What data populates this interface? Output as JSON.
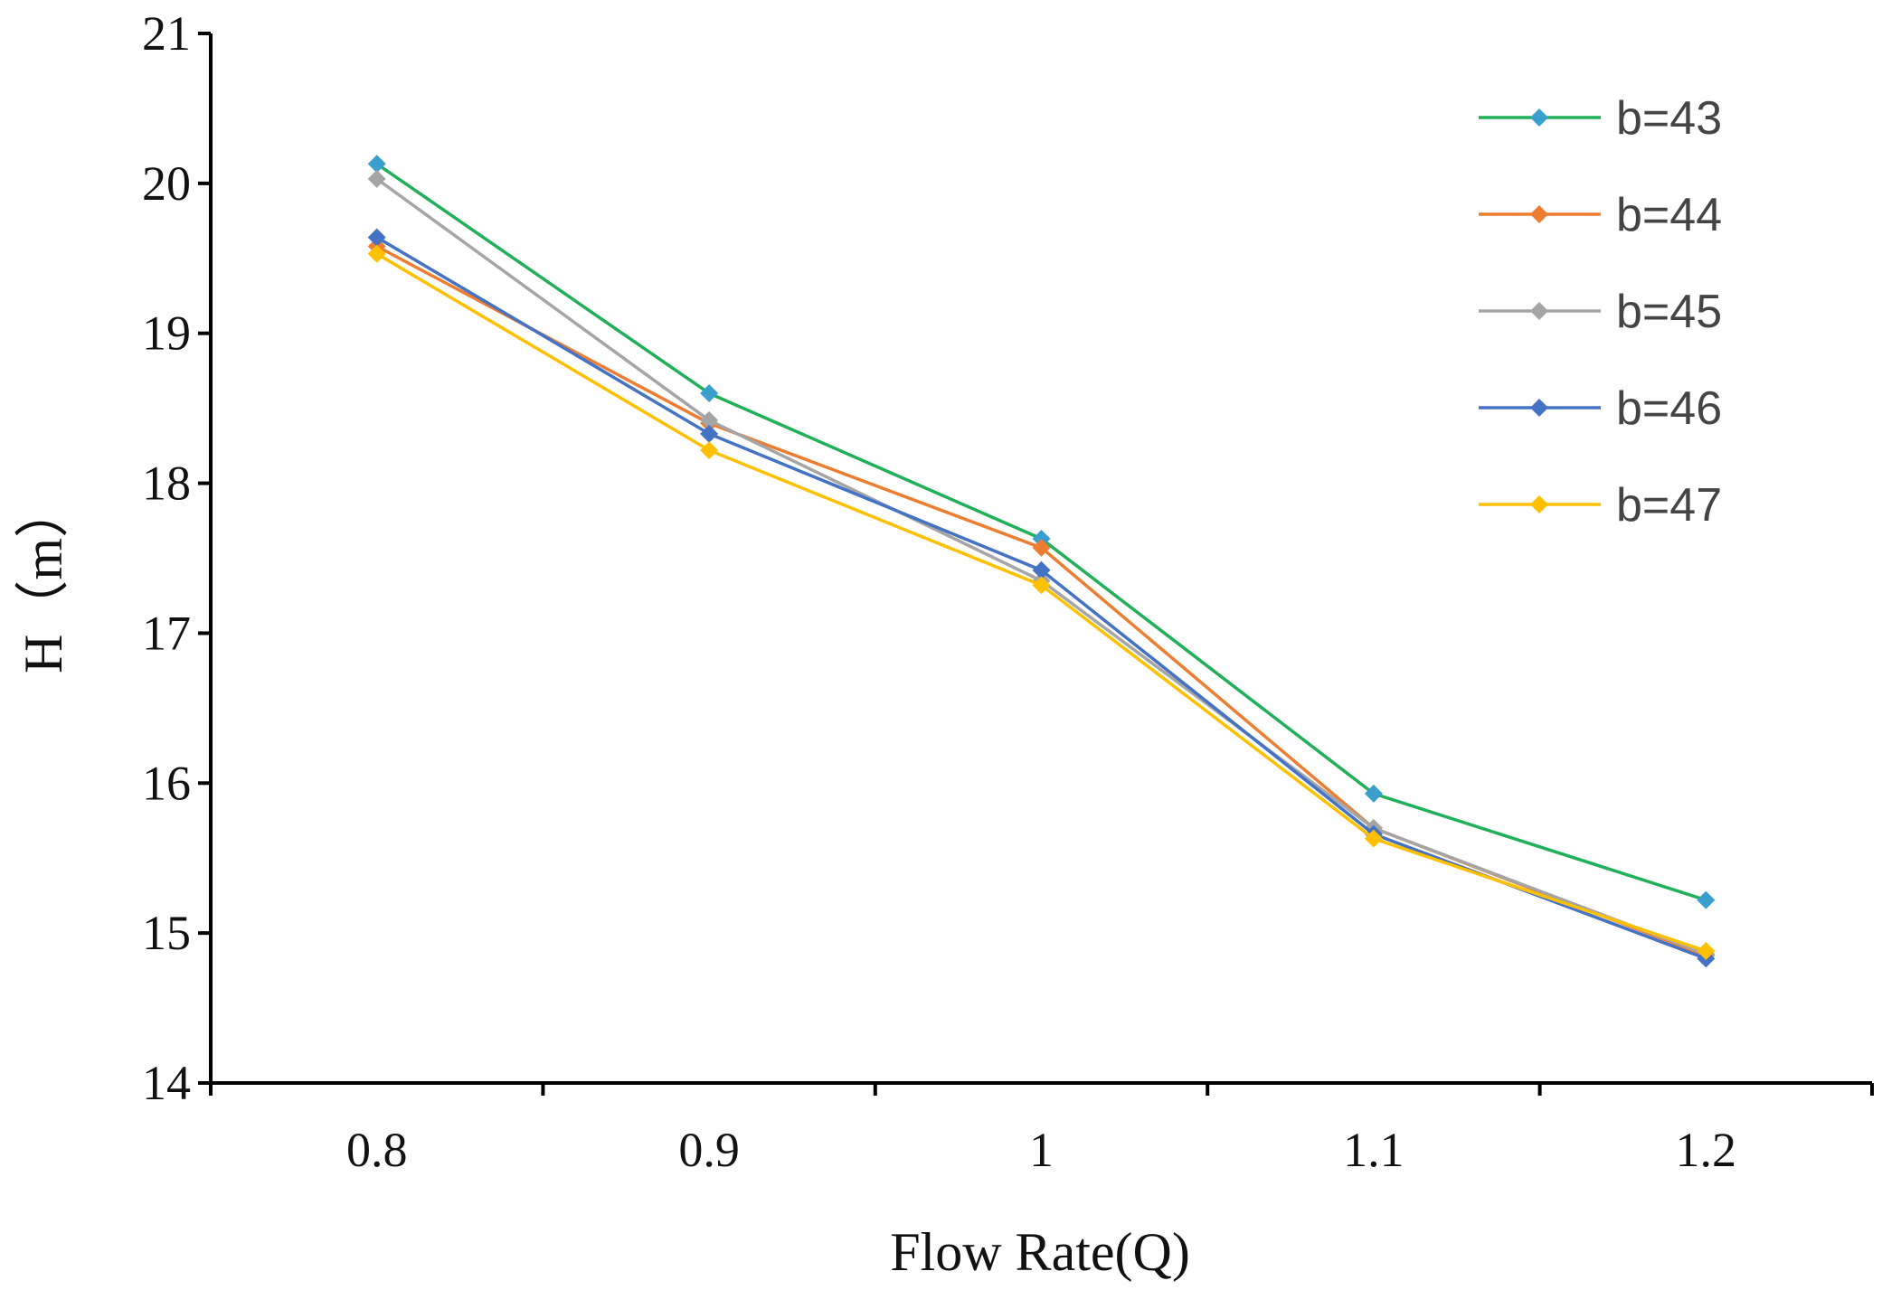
{
  "chart_data": {
    "type": "line",
    "title": "",
    "xlabel": "Flow Rate(Q)",
    "ylabel": "H（m）",
    "categories": [
      "0.8",
      "0.9",
      "1",
      "1.1",
      "1.2"
    ],
    "ylim": [
      14,
      21
    ],
    "yticks": [
      "14",
      "15",
      "16",
      "17",
      "18",
      "19",
      "20",
      "21"
    ],
    "grid": false,
    "legend_position": "top-right",
    "marker": "diamond",
    "series": [
      {
        "name": "b=43",
        "color": "#21B05A",
        "marker_color": "#3A9ECF",
        "values": [
          20.13,
          18.6,
          17.63,
          15.93,
          15.22
        ]
      },
      {
        "name": "b=44",
        "color": "#ED7D31",
        "marker_color": "#ED7D31",
        "values": [
          19.58,
          18.4,
          17.57,
          15.7,
          14.85
        ]
      },
      {
        "name": "b=45",
        "color": "#A5A5A5",
        "marker_color": "#A5A5A5",
        "values": [
          20.03,
          18.42,
          17.35,
          15.7,
          14.86
        ]
      },
      {
        "name": "b=46",
        "color": "#4472C4",
        "marker_color": "#4472C4",
        "values": [
          19.64,
          18.33,
          17.42,
          15.66,
          14.83
        ]
      },
      {
        "name": "b=47",
        "color": "#FFC000",
        "marker_color": "#FFC000",
        "values": [
          19.53,
          18.22,
          17.32,
          15.63,
          14.88
        ]
      }
    ]
  }
}
